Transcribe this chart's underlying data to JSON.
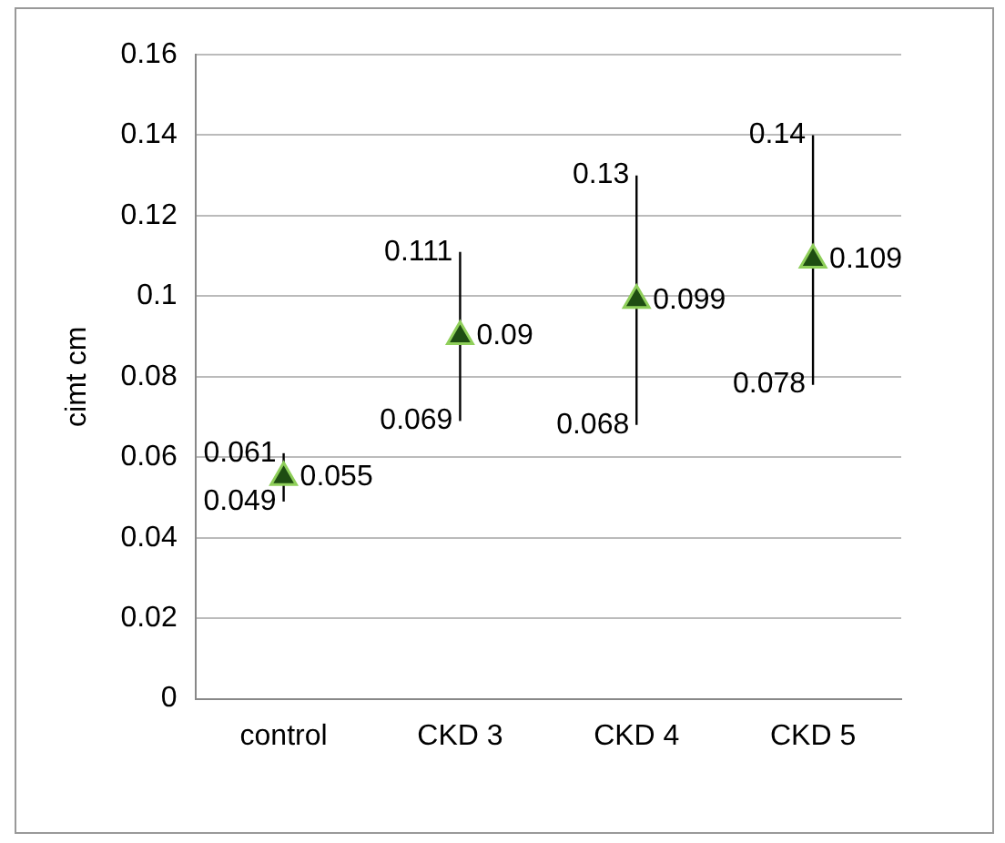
{
  "chart_data": {
    "type": "scatter",
    "ylabel": "cimt cm",
    "categories": [
      "control",
      "CKD 3",
      "CKD 4",
      "CKD 5"
    ],
    "series": [
      {
        "color": "#1e4d12",
        "values": [
          0.055,
          0.09,
          0.099,
          0.109
        ],
        "errors": [
          [
            0.049,
            0.061
          ],
          [
            0.069,
            0.111
          ],
          [
            0.068,
            0.13
          ],
          [
            0.078,
            0.14
          ]
        ]
      }
    ],
    "data_labels": true,
    "marker": "triangle",
    "annotations": [
      {
        "text": "0.061",
        "x": "control",
        "y": 0.061
      },
      {
        "text": "0.049",
        "x": "control",
        "y": 0.049
      },
      {
        "text": "0.111",
        "x": "CKD 3",
        "y": 0.111
      },
      {
        "text": "0.069",
        "x": "CKD 3",
        "y": 0.069
      },
      {
        "text": "0.13",
        "x": "CKD 4",
        "y": 0.13
      },
      {
        "text": "0.068",
        "x": "CKD 4",
        "y": 0.068
      },
      {
        "text": "0.14",
        "x": "CKD 5",
        "y": 0.14
      },
      {
        "text": "0.078",
        "x": "CKD 5",
        "y": 0.078
      }
    ],
    "ylim": [
      0,
      0.16
    ],
    "yticks": [
      0,
      0.02,
      0.04,
      0.06,
      0.08,
      0.1,
      0.12,
      0.14,
      0.16
    ],
    "grid": "y",
    "legend": false
  }
}
